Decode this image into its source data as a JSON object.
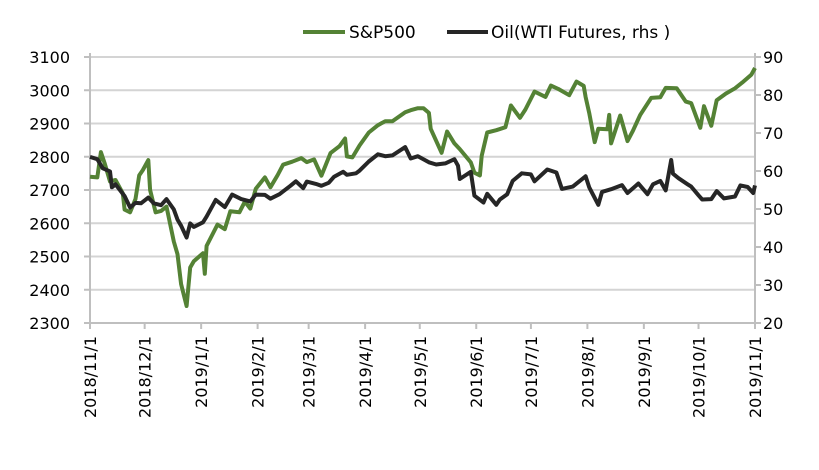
{
  "chart_data": {
    "type": "line",
    "title": "",
    "legend_position": "top",
    "grid": true,
    "x_ticks": [
      "2018/11/1",
      "2018/12/1",
      "2019/1/1",
      "2019/2/1",
      "2019/3/1",
      "2019/4/1",
      "2019/5/1",
      "2019/6/1",
      "2019/7/1",
      "2019/8/1",
      "2019/9/1",
      "2019/10/1",
      "2019/11/1"
    ],
    "x_range": [
      "2018-11-01",
      "2019-11-01"
    ],
    "y_left": {
      "range": [
        2300,
        3100
      ],
      "ticks": [
        "2300",
        "2400",
        "2500",
        "2600",
        "2700",
        "2800",
        "2900",
        "3000",
        "3100"
      ]
    },
    "y_right": {
      "range": [
        20,
        90
      ],
      "ticks": [
        "20",
        "30",
        "40",
        "50",
        "60",
        "70",
        "80",
        "90"
      ]
    },
    "series": [
      {
        "name": "S&P500",
        "axis": "left",
        "color": "#548235",
        "x": [
          "2018-11-01",
          "2018-11-05",
          "2018-11-07",
          "2018-11-09",
          "2018-11-12",
          "2018-11-15",
          "2018-11-19",
          "2018-11-20",
          "2018-11-23",
          "2018-11-26",
          "2018-11-28",
          "2018-11-30",
          "2018-12-03",
          "2018-12-04",
          "2018-12-07",
          "2018-12-10",
          "2018-12-13",
          "2018-12-17",
          "2018-12-19",
          "2018-12-21",
          "2018-12-24",
          "2018-12-26",
          "2018-12-28",
          "2019-01-02",
          "2019-01-03",
          "2019-01-04",
          "2019-01-08",
          "2019-01-10",
          "2019-01-14",
          "2019-01-17",
          "2019-01-22",
          "2019-01-25",
          "2019-01-28",
          "2019-01-31",
          "2019-02-05",
          "2019-02-08",
          "2019-02-12",
          "2019-02-15",
          "2019-02-20",
          "2019-02-25",
          "2019-02-28",
          "2019-03-04",
          "2019-03-08",
          "2019-03-13",
          "2019-03-18",
          "2019-03-21",
          "2019-03-22",
          "2019-03-25",
          "2019-03-29",
          "2019-04-03",
          "2019-04-08",
          "2019-04-12",
          "2019-04-16",
          "2019-04-23",
          "2019-04-26",
          "2019-04-30",
          "2019-05-03",
          "2019-05-06",
          "2019-05-07",
          "2019-05-13",
          "2019-05-16",
          "2019-05-20",
          "2019-05-23",
          "2019-05-29",
          "2019-05-31",
          "2019-06-03",
          "2019-06-04",
          "2019-06-07",
          "2019-06-12",
          "2019-06-17",
          "2019-06-20",
          "2019-06-25",
          "2019-06-28",
          "2019-07-03",
          "2019-07-09",
          "2019-07-12",
          "2019-07-16",
          "2019-07-22",
          "2019-07-26",
          "2019-07-30",
          "2019-07-31",
          "2019-08-02",
          "2019-08-05",
          "2019-08-07",
          "2019-08-12",
          "2019-08-13",
          "2019-08-14",
          "2019-08-19",
          "2019-08-23",
          "2019-08-26",
          "2019-08-30",
          "2019-09-05",
          "2019-09-10",
          "2019-09-13",
          "2019-09-19",
          "2019-09-24",
          "2019-09-27",
          "2019-10-02",
          "2019-10-04",
          "2019-10-08",
          "2019-10-11",
          "2019-10-16",
          "2019-10-21",
          "2019-10-25",
          "2019-10-30",
          "2019-11-01"
        ],
        "values": [
          2740,
          2738,
          2814,
          2781,
          2726,
          2730,
          2690,
          2641,
          2633,
          2673,
          2744,
          2760,
          2790,
          2700,
          2633,
          2637,
          2650,
          2545,
          2507,
          2417,
          2351,
          2467,
          2486,
          2510,
          2448,
          2532,
          2575,
          2596,
          2582,
          2636,
          2633,
          2665,
          2644,
          2704,
          2738,
          2708,
          2745,
          2776,
          2785,
          2796,
          2784,
          2792,
          2743,
          2811,
          2832,
          2855,
          2801,
          2798,
          2834,
          2873,
          2895,
          2907,
          2907,
          2934,
          2940,
          2946,
          2946,
          2932,
          2884,
          2812,
          2876,
          2840,
          2823,
          2783,
          2752,
          2744,
          2803,
          2873,
          2880,
          2889,
          2954,
          2917,
          2942,
          2996,
          2980,
          3014,
          3004,
          2985,
          3026,
          3013,
          2980,
          2932,
          2844,
          2884,
          2883,
          2926,
          2840,
          2924,
          2847,
          2878,
          2926,
          2977,
          2979,
          3007,
          3006,
          2966,
          2961,
          2887,
          2952,
          2893,
          2970,
          2990,
          3006,
          3023,
          3047,
          3067
        ]
      },
      {
        "name": "Oil(WTI Futures, rhs )",
        "axis": "right",
        "color": "#262626",
        "x": [
          "2018-11-01",
          "2018-11-05",
          "2018-11-08",
          "2018-11-12",
          "2018-11-13",
          "2018-11-15",
          "2018-11-20",
          "2018-11-23",
          "2018-11-26",
          "2018-11-29",
          "2018-12-03",
          "2018-12-06",
          "2018-12-10",
          "2018-12-13",
          "2018-12-17",
          "2018-12-19",
          "2018-12-21",
          "2018-12-24",
          "2018-12-26",
          "2018-12-28",
          "2019-01-02",
          "2019-01-04",
          "2019-01-09",
          "2019-01-14",
          "2019-01-18",
          "2019-01-23",
          "2019-01-28",
          "2019-01-31",
          "2019-02-05",
          "2019-02-08",
          "2019-02-13",
          "2019-02-19",
          "2019-02-22",
          "2019-02-26",
          "2019-02-28",
          "2019-03-05",
          "2019-03-08",
          "2019-03-12",
          "2019-03-15",
          "2019-03-20",
          "2019-03-22",
          "2019-03-27",
          "2019-03-29",
          "2019-04-03",
          "2019-04-08",
          "2019-04-12",
          "2019-04-16",
          "2019-04-23",
          "2019-04-26",
          "2019-04-30",
          "2019-05-06",
          "2019-05-10",
          "2019-05-15",
          "2019-05-20",
          "2019-05-22",
          "2019-05-23",
          "2019-05-29",
          "2019-05-31",
          "2019-06-05",
          "2019-06-07",
          "2019-06-12",
          "2019-06-14",
          "2019-06-18",
          "2019-06-21",
          "2019-06-26",
          "2019-07-01",
          "2019-07-03",
          "2019-07-10",
          "2019-07-15",
          "2019-07-18",
          "2019-07-24",
          "2019-07-31",
          "2019-08-02",
          "2019-08-07",
          "2019-08-09",
          "2019-08-14",
          "2019-08-20",
          "2019-08-23",
          "2019-08-29",
          "2019-09-03",
          "2019-09-06",
          "2019-09-10",
          "2019-09-13",
          "2019-09-16",
          "2019-09-17",
          "2019-09-20",
          "2019-09-25",
          "2019-09-27",
          "2019-10-01",
          "2019-10-03",
          "2019-10-08",
          "2019-10-11",
          "2019-10-15",
          "2019-10-21",
          "2019-10-24",
          "2019-10-28",
          "2019-10-31",
          "2019-11-01"
        ],
        "values": [
          63.7,
          63.1,
          60.7,
          59.9,
          55.7,
          56.5,
          53.4,
          50.4,
          51.6,
          51.5,
          53.0,
          51.5,
          51.0,
          52.6,
          49.9,
          47.2,
          45.6,
          42.5,
          46.2,
          45.3,
          46.5,
          48.0,
          52.4,
          50.5,
          53.8,
          52.6,
          52.0,
          53.8,
          53.7,
          52.7,
          53.9,
          56.1,
          57.3,
          55.5,
          57.2,
          56.6,
          56.1,
          56.9,
          58.5,
          59.8,
          59.0,
          59.4,
          60.1,
          62.5,
          64.4,
          63.9,
          64.1,
          66.3,
          63.3,
          63.9,
          62.3,
          61.7,
          62.0,
          63.1,
          61.4,
          57.9,
          59.8,
          53.5,
          51.7,
          54.0,
          51.1,
          52.5,
          53.9,
          57.4,
          59.4,
          59.1,
          57.3,
          60.4,
          59.6,
          55.3,
          55.9,
          58.6,
          55.7,
          51.1,
          54.5,
          55.2,
          56.3,
          54.2,
          56.7,
          53.9,
          56.5,
          57.4,
          54.9,
          62.9,
          59.3,
          58.1,
          56.5,
          55.9,
          53.6,
          52.5,
          52.6,
          54.7,
          52.8,
          53.3,
          56.2,
          55.8,
          54.2,
          56.2
        ]
      }
    ]
  }
}
